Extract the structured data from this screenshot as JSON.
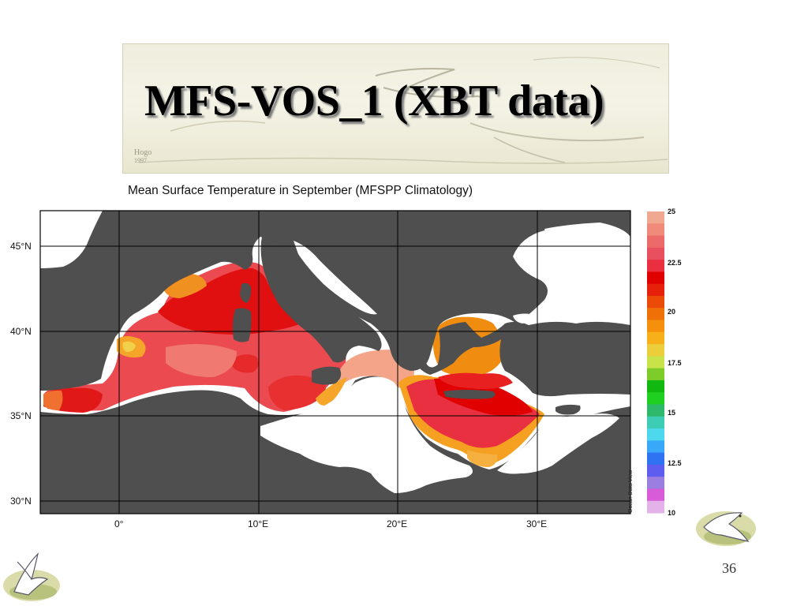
{
  "slide": {
    "title": "MFS-VOS_1 (XBT data)",
    "page_number": "36"
  },
  "map": {
    "title": "Mean Surface Temperature in September (MFSPP Climatology)",
    "credit": "Ocean Data View",
    "lat_labels": [
      "45°N",
      "40°N",
      "35°N",
      "30°N"
    ],
    "lon_labels": [
      "0°",
      "10°E",
      "20°E",
      "30°E"
    ],
    "colorbar": {
      "labels": [
        "25",
        "22.5",
        "20",
        "17.5",
        "15",
        "12.5",
        "10"
      ],
      "range": [
        10,
        25
      ],
      "colors": [
        "#e3b2e8",
        "#d85cd8",
        "#9a7ee0",
        "#5d5df0",
        "#2f72f2",
        "#3aa8f8",
        "#4ed8ee",
        "#3ccdb4",
        "#2eb86a",
        "#20d020",
        "#10b810",
        "#7ecc2a",
        "#c8e24a",
        "#eccd3a",
        "#f8b01a",
        "#f5900c",
        "#f07008",
        "#ec4a08",
        "#e6200a",
        "#e00000",
        "#ea3040",
        "#e85060",
        "#ec6a6a",
        "#f08a7a",
        "#f0a890"
      ]
    },
    "colors": {
      "land": "#4f4f4f",
      "sea_nodata": "#ffffff"
    }
  }
}
